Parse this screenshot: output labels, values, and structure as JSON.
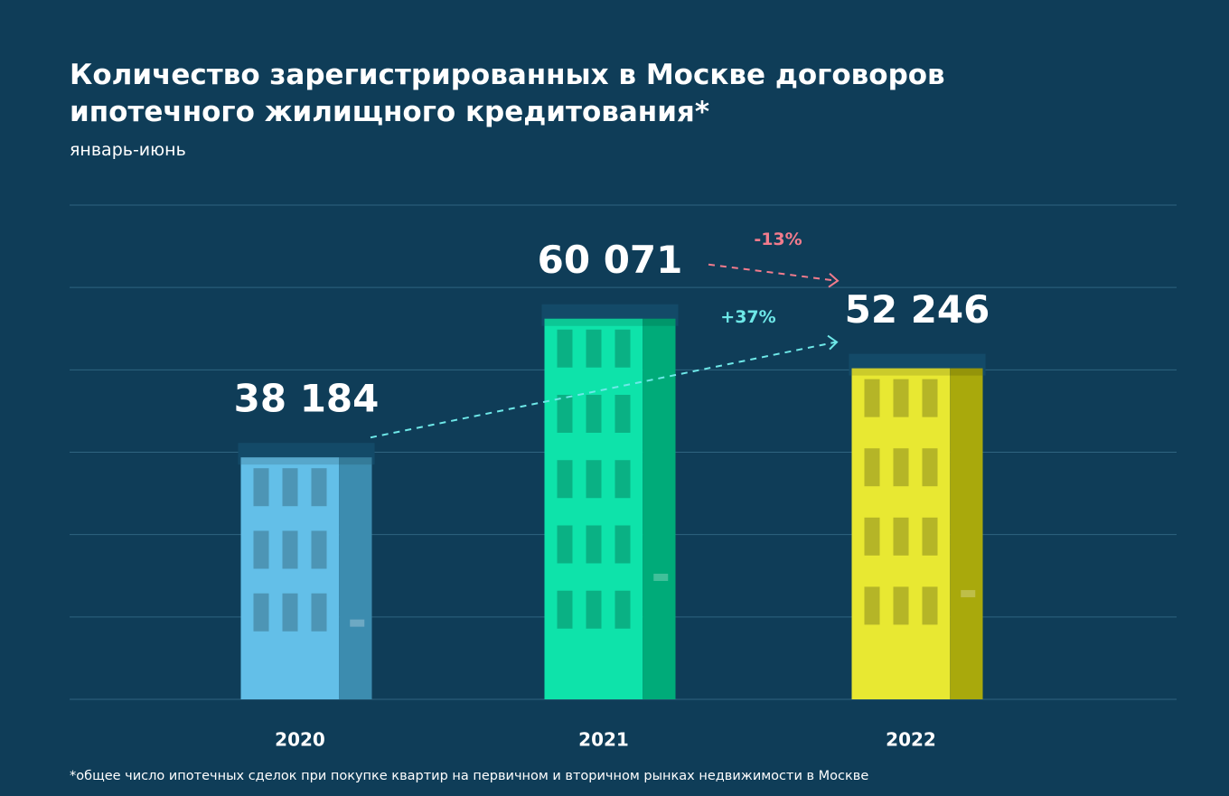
{
  "chart_data": {
    "type": "bar",
    "title": [
      "Количество зарегистрированных в Москве договоров",
      "ипотечного жилищного кредитования*"
    ],
    "subtitle": "январь-июнь",
    "footnote": "*общее число ипотечных сделок при покупке квартир на первичном и вторичном рынках недвижимости в Москве",
    "categories": [
      "2020",
      "2021",
      "2022"
    ],
    "values": [
      38184,
      60071,
      52246
    ],
    "value_labels": [
      "38 184",
      "60 071",
      "52 246"
    ],
    "colors": [
      "#63bfe8",
      "#0ee3aa",
      "#e8e832"
    ],
    "ylim": [
      0,
      78000
    ],
    "yticks": [
      0,
      13000,
      26000,
      39000,
      52000,
      65000,
      78000
    ],
    "grid": true,
    "annotations": [
      {
        "text": "+37%",
        "color": "#6ee8e8"
      },
      {
        "text": "-13%",
        "color": "#f27b8c"
      }
    ]
  }
}
